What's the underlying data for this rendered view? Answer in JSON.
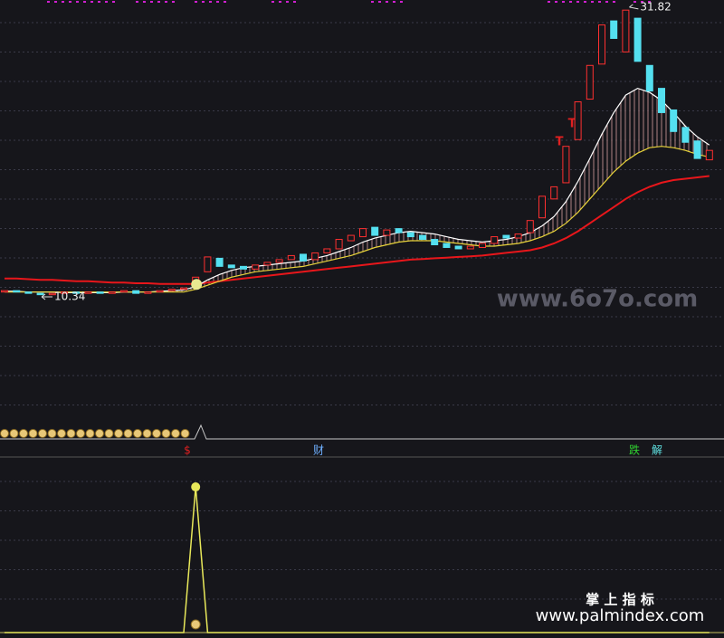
{
  "chart_data": {
    "type": "candlestick",
    "ylim": [
      1.15,
      32.35
    ],
    "candles": {
      "open": [
        10.7,
        10.8,
        10.7,
        10.6,
        10.5,
        10.6,
        10.7,
        10.6,
        10.7,
        10.6,
        10.7,
        10.8,
        10.6,
        10.7,
        10.8,
        10.9,
        11.1,
        12.2,
        13.2,
        12.7,
        12.6,
        12.4,
        12.7,
        12.9,
        13.1,
        13.5,
        13.1,
        13.6,
        13.9,
        14.5,
        14.8,
        15.5,
        14.9,
        15.4,
        15.1,
        14.9,
        14.6,
        14.3,
        14.1,
        13.9,
        14.0,
        14.3,
        14.9,
        14.7,
        15.1,
        16.2,
        17.6,
        18.8,
        22.0,
        25.0,
        27.6,
        30.8,
        28.5,
        31.0,
        27.5,
        25.8,
        24.2,
        22.9,
        21.9,
        20.5
      ],
      "close": [
        10.8,
        10.7,
        10.6,
        10.5,
        10.6,
        10.7,
        10.6,
        10.7,
        10.6,
        10.7,
        10.8,
        10.6,
        10.7,
        10.8,
        10.9,
        11.0,
        11.8,
        13.3,
        12.6,
        12.5,
        12.4,
        12.7,
        12.9,
        13.1,
        13.4,
        13.0,
        13.6,
        13.9,
        14.6,
        14.9,
        15.4,
        14.9,
        15.3,
        15.1,
        14.8,
        14.6,
        14.2,
        14.0,
        13.9,
        14.1,
        14.3,
        14.8,
        14.7,
        15.0,
        16.0,
        17.8,
        18.5,
        21.5,
        24.8,
        27.5,
        30.5,
        29.5,
        31.6,
        27.8,
        25.6,
        24.0,
        22.6,
        21.8,
        20.6,
        21.2
      ]
    },
    "ma": [
      {
        "color": "#e8161b",
        "values": [
          11.7,
          11.7,
          11.65,
          11.6,
          11.6,
          11.55,
          11.5,
          11.5,
          11.45,
          11.4,
          11.4,
          11.35,
          11.35,
          11.3,
          11.3,
          11.3,
          11.3,
          11.4,
          11.5,
          11.6,
          11.7,
          11.8,
          11.9,
          12.0,
          12.1,
          12.2,
          12.3,
          12.4,
          12.5,
          12.6,
          12.7,
          12.8,
          12.9,
          13.0,
          13.1,
          13.15,
          13.2,
          13.25,
          13.3,
          13.35,
          13.4,
          13.5,
          13.6,
          13.7,
          13.8,
          14.0,
          14.3,
          14.7,
          15.2,
          15.8,
          16.4,
          17.0,
          17.6,
          18.1,
          18.5,
          18.8,
          19.0,
          19.1,
          19.2,
          19.3
        ]
      },
      {
        "color": "#ffffff",
        "values": [
          10.75,
          10.75,
          10.7,
          10.7,
          10.7,
          10.65,
          10.65,
          10.65,
          10.65,
          10.65,
          10.7,
          10.7,
          10.7,
          10.75,
          10.8,
          10.85,
          11.1,
          11.6,
          12.0,
          12.3,
          12.5,
          12.6,
          12.7,
          12.8,
          12.9,
          13.0,
          13.2,
          13.4,
          13.7,
          14.0,
          14.4,
          14.7,
          14.9,
          15.1,
          15.2,
          15.1,
          15.0,
          14.8,
          14.6,
          14.5,
          14.4,
          14.5,
          14.6,
          14.8,
          15.1,
          15.6,
          16.3,
          17.4,
          18.9,
          20.6,
          22.4,
          24.0,
          25.3,
          25.8,
          25.5,
          24.9,
          24.0,
          23.0,
          22.2,
          21.6
        ]
      },
      {
        "color": "#e8d33a",
        "values": [
          10.7,
          10.7,
          10.7,
          10.7,
          10.7,
          10.7,
          10.7,
          10.7,
          10.7,
          10.7,
          10.7,
          10.7,
          10.7,
          10.7,
          10.7,
          10.7,
          10.9,
          11.2,
          11.5,
          11.8,
          12.0,
          12.2,
          12.3,
          12.4,
          12.5,
          12.6,
          12.8,
          13.0,
          13.2,
          13.4,
          13.7,
          14.0,
          14.2,
          14.4,
          14.5,
          14.5,
          14.5,
          14.4,
          14.3,
          14.2,
          14.1,
          14.1,
          14.2,
          14.3,
          14.5,
          14.8,
          15.2,
          15.8,
          16.6,
          17.6,
          18.6,
          19.6,
          20.4,
          21.0,
          21.4,
          21.5,
          21.4,
          21.2,
          20.9,
          20.7
        ]
      }
    ],
    "high_label": 31.82,
    "low_label": 10.34,
    "t_markers": [
      "T",
      "T"
    ],
    "watermark": "www.6o7o.com",
    "indicator": {
      "ylim": [
        0,
        105
      ],
      "color": "#e8e85a",
      "values": [
        0,
        0,
        0,
        0,
        0,
        0,
        0,
        0,
        0,
        0,
        0,
        0,
        0,
        0,
        0,
        0,
        100,
        0,
        0,
        0,
        0,
        0,
        0,
        0,
        0,
        0,
        0,
        0,
        0,
        0,
        0,
        0,
        0,
        0,
        0,
        0,
        0,
        0,
        0,
        0,
        0,
        0,
        0,
        0,
        0,
        0,
        0,
        0,
        0,
        0,
        0,
        0,
        0,
        0,
        0,
        0,
        0,
        0,
        0,
        0
      ]
    },
    "signals": [
      "$",
      "财",
      "跌",
      "解"
    ],
    "brand": "掌 上 指 标",
    "site": "www.palmindex.com"
  }
}
